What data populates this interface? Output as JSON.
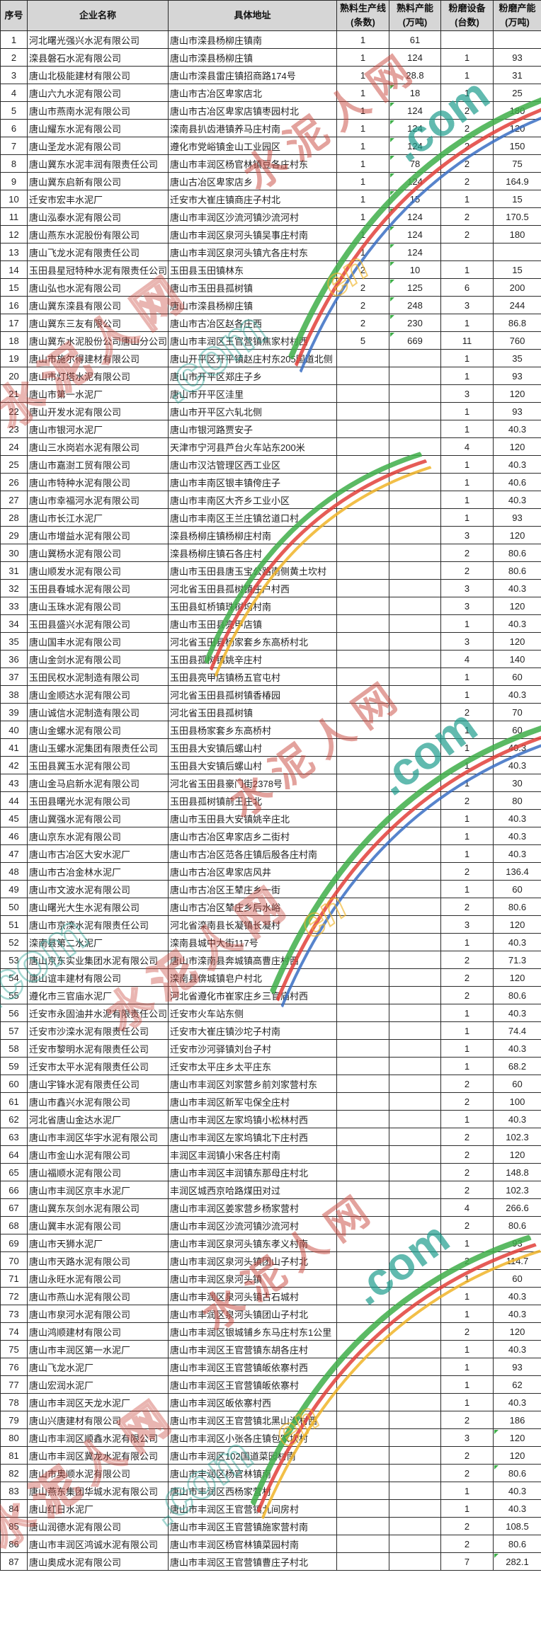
{
  "table": {
    "columns": [
      {
        "key": "no",
        "label": "序号",
        "sub": ""
      },
      {
        "key": "name",
        "label": "企业名称",
        "sub": ""
      },
      {
        "key": "address",
        "label": "具体地址",
        "sub": ""
      },
      {
        "key": "lines",
        "label": "熟料生产线",
        "sub": "(条数)"
      },
      {
        "key": "clinker",
        "label": "熟料产能",
        "sub": "(万吨)"
      },
      {
        "key": "mills",
        "label": "粉磨设备",
        "sub": "(台数)"
      },
      {
        "key": "grinding",
        "label": "粉磨产能",
        "sub": "(万吨)"
      }
    ],
    "rows": [
      [
        "1",
        "河北曙光强兴水泥有限公司",
        "唐山市滦县杨柳庄镇南",
        "1",
        "61",
        "",
        ""
      ],
      [
        "2",
        "滦县磐石水泥有限公司",
        "唐山市滦县杨柳庄镇",
        "1",
        "124",
        "1",
        "93"
      ],
      [
        "3",
        "唐山北极能建材有限公司",
        "唐山市滦县雷庄镇招商路174号",
        "1",
        "28.8",
        "1",
        "31"
      ],
      [
        "4",
        "唐山六九水泥有限公司",
        "唐山市古冶区卑家店北",
        "1",
        "18",
        "1",
        "25"
      ],
      [
        "5",
        "唐山市燕南水泥有限公司",
        "唐山市古冶区卑家店镇枣园村北",
        "1",
        "124",
        "2",
        "180"
      ],
      [
        "6",
        "唐山耀东水泥有限公司",
        "滦南县扒齿港镇养马庄村南",
        "1",
        "124",
        "2",
        "120"
      ],
      [
        "7",
        "唐山圣龙水泥有限公司",
        "遵化市党峪镇金山工业园区",
        "1",
        "124",
        "2",
        "150"
      ],
      [
        "8",
        "唐山冀东水泥丰润有限责任公司",
        "唐山市丰润区杨官林镇豆各庄村东",
        "1",
        "78",
        "2",
        "75"
      ],
      [
        "9",
        "唐山冀东启新有限公司",
        "唐山古冶区卑家店乡",
        "1",
        "124",
        "2",
        "164.9"
      ],
      [
        "10",
        "迁安市宏丰水泥厂",
        "迁安市大崔庄镇商庄子村北",
        "1",
        "15",
        "1",
        "15"
      ],
      [
        "11",
        "唐山泓泰水泥有限公司",
        "唐山市丰润区沙流河镇沙流河村",
        "1",
        "124",
        "2",
        "170.5"
      ],
      [
        "12",
        "唐山燕东水泥股份有限公司",
        "唐山市丰润区泉河头镇吴事庄村南",
        "1",
        "124",
        "2",
        "180"
      ],
      [
        "13",
        "唐山飞龙水泥有限责任公司",
        "唐山市丰润区泉河头镇亢各庄村东",
        "1",
        "124",
        "",
        ""
      ],
      [
        "14",
        "玉田县星冠特种水泥有限责任公司",
        "玉田县玉田镇林东",
        "2",
        "10",
        "1",
        "15"
      ],
      [
        "15",
        "唐山弘也水泥有限公司",
        "唐山市玉田县孤树镇",
        "2",
        "125",
        "6",
        "200"
      ],
      [
        "16",
        "唐山冀东滦县有限公司",
        "唐山市滦县杨柳庄镇",
        "2",
        "248",
        "3",
        "244"
      ],
      [
        "17",
        "唐山冀东三友有限公司",
        "唐山市古冶区赵各庄西",
        "2",
        "230",
        "1",
        "86.8"
      ],
      [
        "18",
        "唐山冀东水泥股份公司唐山分公司",
        "唐山市丰润区王官营镇焦家村村西",
        "5",
        "669",
        "11",
        "760"
      ],
      [
        "19",
        "唐山市施尔得建材有限公司",
        "唐山开平区开平镇赵庄村东205国道北侧",
        "",
        "",
        "1",
        "35"
      ],
      [
        "20",
        "唐山市灯塔水泥有限公司",
        "唐山市开平区郑庄子乡",
        "",
        "",
        "1",
        "93"
      ],
      [
        "21",
        "唐山市第一水泥厂",
        "唐山市开平区洼里",
        "",
        "",
        "3",
        "120"
      ],
      [
        "22",
        "唐山开发水泥有限公司",
        "唐山市开平区六轧北侧",
        "",
        "",
        "1",
        "93"
      ],
      [
        "23",
        "唐山市银河水泥厂",
        "唐山市银河路贾安子",
        "",
        "",
        "1",
        "40.3"
      ],
      [
        "24",
        "唐山三水岗岩水泥有限公司",
        "天津市宁河县芦台火车站东200米",
        "",
        "",
        "4",
        "120"
      ],
      [
        "25",
        "唐山市嘉澍工贸有限公司",
        "唐山市汉沽管理区西工业区",
        "",
        "",
        "1",
        "40.3"
      ],
      [
        "26",
        "唐山市特种水泥有限公司",
        "唐山市丰南区银丰镇侉庄子",
        "",
        "",
        "1",
        "40.6"
      ],
      [
        "27",
        "唐山市幸福河水泥有限公司",
        "唐山市丰南区大齐乡工业小区",
        "",
        "",
        "1",
        "40.3"
      ],
      [
        "28",
        "唐山市长江水泥厂",
        "唐山市丰南区王兰庄镇岔道口村",
        "",
        "",
        "1",
        "93"
      ],
      [
        "29",
        "唐山市增益水泥有限公司",
        "滦县杨柳庄镇杨柳庄村南",
        "",
        "",
        "3",
        "120"
      ],
      [
        "30",
        "唐山冀杨水泥有限公司",
        "滦县杨柳庄镇石各庄村",
        "",
        "",
        "2",
        "80.6"
      ],
      [
        "31",
        "唐山顺发水泥有限公司",
        "唐山市玉田县唐玉宝公路南侧黄土坎村",
        "",
        "",
        "2",
        "80.6"
      ],
      [
        "32",
        "玉田县春城水泥有限公司",
        "河北省玉田县孤树镇庄户村西",
        "",
        "",
        "3",
        "40.3"
      ],
      [
        "33",
        "唐山玉珠水泥有限公司",
        "玉田县虹桥镇珠树坞村南",
        "",
        "",
        "3",
        "120"
      ],
      [
        "34",
        "玉田县盛兴水泥有限公司",
        "唐山市玉田县亮甲店镇",
        "",
        "",
        "1",
        "40.3"
      ],
      [
        "35",
        "唐山国丰水泥有限公司",
        "河北省玉田县杨家套乡东高桥村北",
        "",
        "",
        "3",
        "120"
      ],
      [
        "36",
        "唐山金剑水泥有限公司",
        "玉田县孤树镇姚辛庄村",
        "",
        "",
        "4",
        "140"
      ],
      [
        "37",
        "玉田民权水泥制造有限公司",
        "玉田县亮甲店镇杨五官屯村",
        "",
        "",
        "1",
        "60"
      ],
      [
        "38",
        "唐山金顺达水泥有限公司",
        "河北省玉田县孤树镇香椿园",
        "",
        "",
        "1",
        "40.3"
      ],
      [
        "39",
        "唐山诚信水泥制造有限公司",
        "河北省玉田县孤树镇",
        "",
        "",
        "2",
        "70"
      ],
      [
        "40",
        "唐山金螺水泥有限公司",
        "玉田县杨家套乡东高桥村",
        "",
        "",
        "1",
        "60"
      ],
      [
        "41",
        "唐山玉螺水泥集团有限责任公司",
        "玉田县大安镇后螺山村",
        "",
        "",
        "1",
        "40.3"
      ],
      [
        "42",
        "玉田县冀玉水泥有限公司",
        "玉田县大安镇后螺山村",
        "",
        "",
        "1",
        "40.3"
      ],
      [
        "43",
        "唐山金马启新水泥有限公司",
        "河北省玉田县豪门街2378号",
        "",
        "",
        "1",
        "30"
      ],
      [
        "44",
        "玉田县曙光水泥有限公司",
        "玉田县孤树镇前王庄北",
        "",
        "",
        "2",
        "80"
      ],
      [
        "45",
        "唐山冀强水泥有限公司",
        "唐山市玉田县大安镇姚辛庄北",
        "",
        "",
        "1",
        "40.3"
      ],
      [
        "46",
        "唐山京东水泥有限公司",
        "唐山市古冶区卑家店乡二街村",
        "",
        "",
        "1",
        "40.3"
      ],
      [
        "47",
        "唐山市古冶区大安水泥厂",
        "唐山市古冶区范各庄镇后殷各庄村南",
        "",
        "",
        "1",
        "40.3"
      ],
      [
        "48",
        "唐山市古冶金林水泥厂",
        "唐山市古冶区卑家店风井",
        "",
        "",
        "2",
        "136.4"
      ],
      [
        "49",
        "唐山市文波水泥有限公司",
        "唐山市古冶区王辇庄乡一街",
        "",
        "",
        "1",
        "60"
      ],
      [
        "50",
        "唐山曙光大生水泥有限公司",
        "唐山市古冶区辇庄乡后水峪",
        "",
        "",
        "2",
        "80.6"
      ],
      [
        "51",
        "唐山市京滦水泥有限责任公司",
        "河北省滦南县长凝镇长凝村",
        "",
        "",
        "3",
        "120"
      ],
      [
        "52",
        "滦南县第二水泥厂",
        "滦南县城中大街117号",
        "",
        "",
        "1",
        "40.3"
      ],
      [
        "53",
        "唐山京东实业集团水泥有限公司",
        "唐山市滦南县奔城镇高曹庄村西",
        "",
        "",
        "2",
        "71.3"
      ],
      [
        "54",
        "唐山谊丰建材有限公司",
        "滦南县倴城镇皂户村北",
        "",
        "",
        "2",
        "120"
      ],
      [
        "55",
        "遵化市三官庙水泥厂",
        "河北省遵化市崔家庄乡三官庙村西",
        "",
        "",
        "2",
        "80.6"
      ],
      [
        "56",
        "迁安市永固油井水泥有限责任公司",
        "迁安市火车站东侧",
        "",
        "",
        "1",
        "40.3"
      ],
      [
        "57",
        "迁安市沙滦水泥有限责任公司",
        "迁安市大崔庄镇沙坨子村南",
        "",
        "",
        "1",
        "74.4"
      ],
      [
        "58",
        "迁安市黎明水泥有限责任公司",
        "迁安市沙河驿镇刘台子村",
        "",
        "",
        "1",
        "40.3"
      ],
      [
        "59",
        "迁安市太平水泥有限责任公司",
        "迁安市太平庄乡太平庄东",
        "",
        "",
        "1",
        "68.2"
      ],
      [
        "60",
        "唐山宇锋水泥有限责任公司",
        "唐山市丰润区刘家营乡前刘家营村东",
        "",
        "",
        "2",
        "60"
      ],
      [
        "61",
        "唐山市鑫兴水泥有限公司",
        "唐山市丰润区新军屯保全庄村",
        "",
        "",
        "2",
        "100"
      ],
      [
        "62",
        "河北省唐山金达水泥厂",
        "唐山市丰润区左家坞镇小松林村西",
        "",
        "",
        "1",
        "40.3"
      ],
      [
        "63",
        "唐山市丰润区华宇水泥有限公司",
        "唐山市丰润区左家坞镇北下庄村西",
        "",
        "",
        "2",
        "102.3"
      ],
      [
        "64",
        "唐山市金山水泥有限公司",
        "丰润区丰润镇小宋各庄村南",
        "",
        "",
        "2",
        "120"
      ],
      [
        "65",
        "唐山福顺水泥有限公司",
        "唐山市丰润区丰润镇东那母庄村北",
        "",
        "",
        "2",
        "148.8"
      ],
      [
        "66",
        "唐山市丰润区京丰水泥厂",
        "丰润区城西京哈路煤田对过",
        "",
        "",
        "2",
        "102.3"
      ],
      [
        "67",
        "唐山冀东灰剑水泥有限公司",
        "唐山市丰润区姜家营乡杨家营村",
        "",
        "",
        "4",
        "266.6"
      ],
      [
        "68",
        "唐山冀丰水泥有限公司",
        "唐山市丰润区沙流河镇沙流河村",
        "",
        "",
        "2",
        "80.6"
      ],
      [
        "69",
        "唐山市天狮水泥厂",
        "唐山市丰润区泉河头镇东孝义村南",
        "",
        "",
        "1",
        "93"
      ],
      [
        "70",
        "唐山市天路水泥有限公司",
        "唐山市丰润区泉河头镇团山子村北",
        "",
        "",
        "2",
        "114.7"
      ],
      [
        "71",
        "唐山永旺水泥有限公司",
        "唐山市丰润区泉河头镇",
        "",
        "",
        "1",
        "60"
      ],
      [
        "72",
        "唐山市燕山水泥有限公司",
        "唐山市丰润区泉河头镇古石城村",
        "",
        "",
        "1",
        "40.3"
      ],
      [
        "73",
        "唐山市泉河水泥有限公司",
        "唐山市丰润区泉河头镇团山子村北",
        "",
        "",
        "1",
        "40.3"
      ],
      [
        "74",
        "唐山鸿顺建材有限公司",
        "唐山市丰润区银城铺乡东马庄村东1公里",
        "",
        "",
        "2",
        "120"
      ],
      [
        "75",
        "唐山市丰润区第一水泥厂",
        "唐山市丰润区王官营镇东胡各庄村",
        "",
        "",
        "1",
        "40.3"
      ],
      [
        "76",
        "唐山飞龙水泥厂",
        "唐山市丰润区王官营镇皈依寨村西",
        "",
        "",
        "1",
        "93"
      ],
      [
        "77",
        "唐山宏润水泥厂",
        "唐山市丰润区王官营镇皈依寨村",
        "",
        "",
        "1",
        "62"
      ],
      [
        "78",
        "唐山市丰润区天龙水泥厂",
        "唐山市丰润区皈依寨村西",
        "",
        "",
        "1",
        "40.3"
      ],
      [
        "79",
        "唐山兴唐建材有限公司",
        "唐山市丰润区王官营镇北黑山沟村西",
        "",
        "",
        "2",
        "186"
      ],
      [
        "80",
        "唐山市丰润区顺鑫水泥有限公司",
        "唐山市丰润区小张各庄镇包家坎村",
        "",
        "",
        "3",
        "120"
      ],
      [
        "81",
        "唐山市丰润区冀龙水泥有限公司",
        "唐山市丰润区102国道菜园村南",
        "",
        "",
        "2",
        "120"
      ],
      [
        "82",
        "唐山市奥顺水泥有限公司",
        "唐山市丰润区杨官林镇南",
        "",
        "",
        "2",
        "80.6"
      ],
      [
        "83",
        "唐山燕东集团华城水泥有限公司",
        "唐山市丰润区西杨家营村",
        "",
        "",
        "1",
        "40.3"
      ],
      [
        "84",
        "唐山红日水泥厂",
        "唐山市丰润区王官营镇九间房村",
        "",
        "",
        "1",
        "40.3"
      ],
      [
        "85",
        "唐山润德水泥有限公司",
        "唐山市丰润区王官营镇施家营村南",
        "",
        "",
        "2",
        "108.5"
      ],
      [
        "86",
        "唐山市丰润区鸿诚水泥有限公司",
        "唐山市丰润区杨官林镇菜园村南",
        "",
        "",
        "2",
        "80.6"
      ],
      [
        "87",
        "唐山奥成水泥有限公司",
        "唐山市丰润区王官营镇曹庄子村北",
        "",
        "",
        "7",
        "282.1"
      ]
    ],
    "clinker_flag_rows": [
      "4",
      "5",
      "6",
      "7",
      "8",
      "9",
      "10",
      "11",
      "12",
      "13",
      "14",
      "15",
      "16",
      "17",
      "18"
    ],
    "grinding_flag_rows": [
      "80",
      "82",
      "87"
    ]
  },
  "watermark": {
    "cn": "水泥人网",
    "com": ".com",
    "latin": "en"
  },
  "colors": {
    "header_bg": "#d6d6d6",
    "border": "#2b2b2b",
    "watermark_red": "#c9483e",
    "watermark_teal": "#1f9e8e",
    "watermark_yellow": "#f0b429",
    "ribbon_green": "#3fae49",
    "ribbon_red": "#e2403a",
    "ribbon_blue": "#3a6fc4",
    "flag_green": "#3fae49"
  }
}
